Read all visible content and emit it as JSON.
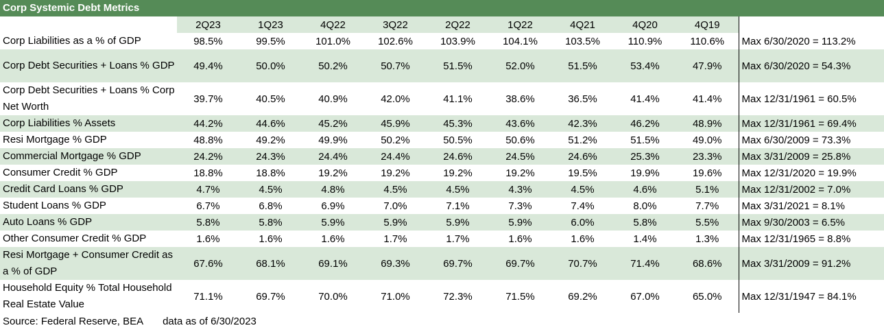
{
  "title": "Corp Systemic Debt Metrics",
  "columns": [
    "2Q23",
    "1Q23",
    "4Q22",
    "3Q22",
    "2Q22",
    "1Q22",
    "4Q21",
    "4Q20",
    "4Q19"
  ],
  "rows": [
    {
      "label": "Corp Liabilities as a % of GDP",
      "values": [
        "98.5%",
        "99.5%",
        "101.0%",
        "102.6%",
        "103.9%",
        "104.1%",
        "103.5%",
        "110.9%",
        "110.6%"
      ],
      "max": "Max 6/30/2020 = 113.2%"
    },
    {
      "label": "Corp Debt Securities + Loans % GDP",
      "values": [
        "49.4%",
        "50.0%",
        "50.2%",
        "50.7%",
        "51.5%",
        "52.0%",
        "51.5%",
        "53.4%",
        "47.9%"
      ],
      "max": "Max 6/30/2020 = 54.3%"
    },
    {
      "label": "Corp Debt Securities + Loans % Corp Net Worth",
      "values": [
        "39.7%",
        "40.5%",
        "40.9%",
        "42.0%",
        "41.1%",
        "38.6%",
        "36.5%",
        "41.4%",
        "41.4%"
      ],
      "max": "Max 12/31/1961 = 60.5%"
    },
    {
      "label": "Corp Liabilities % Assets",
      "values": [
        "44.2%",
        "44.6%",
        "45.2%",
        "45.9%",
        "45.3%",
        "43.6%",
        "42.3%",
        "46.2%",
        "48.9%"
      ],
      "max": "Max 12/31/1961 = 69.4%"
    },
    {
      "label": "Resi Mortgage % GDP",
      "values": [
        "48.8%",
        "49.2%",
        "49.9%",
        "50.2%",
        "50.5%",
        "50.6%",
        "51.2%",
        "51.5%",
        "49.0%"
      ],
      "max": "Max 6/30/2009 = 73.3%"
    },
    {
      "label": "Commercial Mortgage % GDP",
      "values": [
        "24.2%",
        "24.3%",
        "24.4%",
        "24.4%",
        "24.6%",
        "24.5%",
        "24.6%",
        "25.3%",
        "23.3%"
      ],
      "max": "Max 3/31/2009 = 25.8%"
    },
    {
      "label": "Consumer Credit % GDP",
      "values": [
        "18.8%",
        "18.8%",
        "19.2%",
        "19.2%",
        "19.2%",
        "19.2%",
        "19.5%",
        "19.9%",
        "19.6%"
      ],
      "max": "Max 12/31/2020 = 19.9%"
    },
    {
      "label": "Credit Card Loans % GDP",
      "values": [
        "4.7%",
        "4.5%",
        "4.8%",
        "4.5%",
        "4.5%",
        "4.3%",
        "4.5%",
        "4.6%",
        "5.1%"
      ],
      "max": "Max 12/31/2002 = 7.0%"
    },
    {
      "label": "Student Loans % GDP",
      "values": [
        "6.7%",
        "6.8%",
        "6.9%",
        "7.0%",
        "7.1%",
        "7.3%",
        "7.4%",
        "8.0%",
        "7.7%"
      ],
      "max": "Max 3/31/2021 = 8.1%"
    },
    {
      "label": "Auto Loans % GDP",
      "values": [
        "5.8%",
        "5.8%",
        "5.9%",
        "5.9%",
        "5.9%",
        "5.9%",
        "6.0%",
        "5.8%",
        "5.5%"
      ],
      "max": "Max 9/30/2003 = 6.5%"
    },
    {
      "label": "Other Consumer Credit % GDP",
      "values": [
        "1.6%",
        "1.6%",
        "1.6%",
        "1.7%",
        "1.7%",
        "1.6%",
        "1.6%",
        "1.4%",
        "1.3%"
      ],
      "max": "Max 12/31/1965 = 8.8%"
    },
    {
      "label": "Resi Mortgage + Consumer Credit as a % of GDP",
      "values": [
        "67.6%",
        "68.1%",
        "69.1%",
        "69.3%",
        "69.7%",
        "69.7%",
        "70.7%",
        "71.4%",
        "68.6%"
      ],
      "max": "Max 3/31/2009 = 91.2%"
    },
    {
      "label": "Household Equity % Total Household Real Estate Value",
      "values": [
        "71.1%",
        "69.7%",
        "70.0%",
        "71.0%",
        "72.3%",
        "71.5%",
        "69.2%",
        "67.0%",
        "65.0%"
      ],
      "max": "Max 12/31/1947 = 84.1%"
    }
  ],
  "footer": {
    "source": "Source: Federal Reserve, BEA",
    "as_of": "data as of 6/30/2023"
  },
  "colors": {
    "title_bg": "#558b57",
    "band_bg": "#d9e8d9"
  }
}
